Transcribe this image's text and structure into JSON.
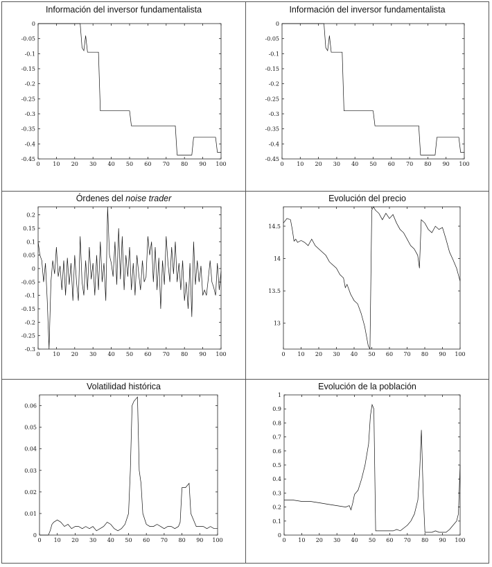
{
  "chart_data": [
    {
      "type": "line",
      "title": "Información del inversor fundamentalista",
      "xlim": [
        0,
        100
      ],
      "ylim": [
        -0.45,
        0
      ],
      "xticks": [
        0,
        10,
        20,
        30,
        40,
        50,
        60,
        70,
        80,
        90,
        100
      ],
      "yticks": [
        0,
        -0.05,
        -0.1,
        -0.15,
        -0.2,
        -0.25,
        -0.3,
        -0.35,
        -0.4,
        -0.45
      ],
      "ytick_labels": [
        "0",
        "-0.05",
        "-0.1",
        "-0.15",
        "-0.2",
        "-0.25",
        "-0.3",
        "-0.35",
        "-0.4",
        "-0.45"
      ],
      "x": [
        0,
        23,
        24,
        25,
        26,
        27,
        33,
        34,
        50,
        51,
        75,
        76,
        84,
        85,
        97,
        98,
        100
      ],
      "y": [
        0,
        0,
        -0.08,
        -0.09,
        -0.04,
        -0.095,
        -0.095,
        -0.29,
        -0.29,
        -0.34,
        -0.34,
        -0.437,
        -0.437,
        -0.378,
        -0.378,
        -0.428,
        -0.428
      ]
    },
    {
      "type": "line",
      "title": "Información del inversor fundamentalista",
      "xlim": [
        0,
        100
      ],
      "ylim": [
        -0.45,
        0
      ],
      "xticks": [
        0,
        10,
        20,
        30,
        40,
        50,
        60,
        70,
        80,
        90,
        100
      ],
      "yticks": [
        0,
        -0.05,
        -0.1,
        -0.15,
        -0.2,
        -0.25,
        -0.3,
        -0.35,
        -0.4,
        -0.45
      ],
      "ytick_labels": [
        "0",
        "-0.05",
        "-0.1",
        "-0.15",
        "-0.2",
        "-0.25",
        "-0.3",
        "-0.35",
        "-0.4",
        "-0.45"
      ],
      "x": [
        0,
        23,
        24,
        25,
        26,
        27,
        33,
        34,
        50,
        51,
        75,
        76,
        84,
        85,
        97,
        98,
        100
      ],
      "y": [
        0,
        0,
        -0.08,
        -0.09,
        -0.04,
        -0.095,
        -0.095,
        -0.29,
        -0.29,
        -0.34,
        -0.34,
        -0.437,
        -0.437,
        -0.378,
        -0.378,
        -0.428,
        -0.428
      ]
    },
    {
      "type": "line",
      "title_main": "Órdenes del ",
      "title_italic": "noise trader",
      "xlim": [
        0,
        100
      ],
      "ylim": [
        -0.3,
        0.23
      ],
      "xticks": [
        0,
        10,
        20,
        30,
        40,
        50,
        60,
        70,
        80,
        90,
        100
      ],
      "yticks": [
        0.2,
        0.15,
        0.1,
        0.05,
        0,
        -0.05,
        -0.1,
        -0.15,
        -0.2,
        -0.25,
        -0.3
      ],
      "ytick_labels": [
        "0.2",
        "0.15",
        "0.1",
        "0.05",
        "0",
        "-0.05",
        "-0.1",
        "-0.15",
        "-0.2",
        "-0.25",
        "-0.3"
      ],
      "x": [
        0,
        1,
        2,
        3,
        4,
        5,
        6,
        7,
        8,
        9,
        10,
        11,
        12,
        13,
        14,
        15,
        16,
        17,
        18,
        19,
        20,
        21,
        22,
        23,
        24,
        25,
        26,
        27,
        28,
        29,
        30,
        31,
        32,
        33,
        34,
        35,
        36,
        37,
        38,
        39,
        40,
        41,
        42,
        43,
        44,
        45,
        46,
        47,
        48,
        49,
        50,
        51,
        52,
        53,
        54,
        55,
        56,
        57,
        58,
        59,
        60,
        61,
        62,
        63,
        64,
        65,
        66,
        67,
        68,
        69,
        70,
        71,
        72,
        73,
        74,
        75,
        76,
        77,
        78,
        79,
        80,
        81,
        82,
        83,
        84,
        85,
        86,
        87,
        88,
        89,
        90,
        91,
        92,
        93,
        94,
        95,
        96,
        97,
        98,
        99,
        100
      ],
      "y": [
        0.1,
        0.05,
        0.03,
        -0.05,
        0.02,
        -0.12,
        -0.3,
        -0.05,
        0.03,
        -0.02,
        0.08,
        -0.03,
        0.01,
        -0.08,
        0.03,
        -0.1,
        0.04,
        -0.06,
        0.02,
        -0.12,
        0.05,
        -0.05,
        -0.12,
        0.12,
        -0.05,
        -0.1,
        0.03,
        -0.08,
        0.08,
        -0.04,
        0.02,
        -0.1,
        0.05,
        -0.08,
        0.1,
        -0.05,
        0.02,
        -0.12,
        0.23,
        0.05,
        0.02,
        -0.03,
        0.1,
        -0.06,
        0.15,
        -0.04,
        0.12,
        -0.08,
        0.05,
        -0.03,
        0.08,
        -0.08,
        0.02,
        -0.1,
        0.05,
        -0.02,
        -0.08,
        0.03,
        -0.05,
        -0.03,
        0.12,
        0.05,
        0.1,
        -0.05,
        0.08,
        -0.08,
        0.04,
        -0.15,
        0.03,
        -0.06,
        0.12,
        0.02,
        -0.05,
        0.08,
        -0.02,
        0.1,
        -0.05,
        0.02,
        -0.08,
        0.03,
        -0.12,
        -0.05,
        -0.15,
        0.02,
        -0.18,
        0.1,
        -0.06,
        0.03,
        -0.05,
        0.01,
        -0.1,
        -0.08,
        -0.1,
        -0.04,
        0.03,
        -0.05,
        -0.07,
        -0.1,
        0.02,
        -0.08,
        -0.01
      ]
    },
    {
      "type": "line",
      "title": "Evolución del precio",
      "xlim": [
        0,
        100
      ],
      "ylim": [
        12.6,
        14.8
      ],
      "xticks": [
        0,
        10,
        20,
        30,
        40,
        50,
        60,
        70,
        80,
        90,
        100
      ],
      "yticks": [
        14.5,
        14,
        13.5,
        13
      ],
      "ytick_labels": [
        "14.5",
        "14",
        "13.5",
        "13"
      ],
      "x": [
        0,
        2,
        4,
        5,
        6,
        7,
        8,
        10,
        12,
        14,
        16,
        18,
        20,
        22,
        24,
        26,
        28,
        30,
        32,
        34,
        35,
        36,
        38,
        40,
        42,
        44,
        46,
        48,
        49,
        50,
        51,
        52,
        54,
        56,
        58,
        60,
        62,
        64,
        66,
        68,
        70,
        72,
        74,
        76,
        77,
        78,
        80,
        82,
        84,
        86,
        88,
        90,
        92,
        94,
        96,
        98,
        100
      ],
      "y": [
        14.55,
        14.62,
        14.6,
        14.45,
        14.27,
        14.3,
        14.25,
        14.28,
        14.25,
        14.2,
        14.3,
        14.2,
        14.15,
        14.1,
        14.05,
        13.95,
        13.9,
        13.85,
        13.75,
        13.7,
        13.55,
        13.6,
        13.45,
        13.35,
        13.3,
        13.15,
        12.95,
        12.65,
        12.6,
        14.75,
        14.8,
        14.75,
        14.7,
        14.6,
        14.7,
        14.62,
        14.68,
        14.55,
        14.45,
        14.4,
        14.3,
        14.2,
        14.15,
        14.05,
        13.85,
        14.6,
        14.55,
        14.45,
        14.4,
        14.5,
        14.45,
        14.48,
        14.3,
        14.1,
        13.98,
        13.85,
        13.65
      ]
    },
    {
      "type": "line",
      "title": "Volatilidad histórica",
      "xlim": [
        0,
        100
      ],
      "ylim": [
        0,
        0.065
      ],
      "xticks": [
        0,
        10,
        20,
        30,
        40,
        50,
        60,
        70,
        80,
        90,
        100
      ],
      "yticks": [
        0,
        0.01,
        0.02,
        0.03,
        0.04,
        0.05,
        0.06
      ],
      "ytick_labels": [
        "0",
        "0.01",
        "0.02",
        "0.03",
        "0.04",
        "0.05",
        "0.06"
      ],
      "x": [
        0,
        5,
        6,
        7,
        8,
        10,
        12,
        14,
        16,
        18,
        20,
        22,
        24,
        26,
        28,
        30,
        32,
        34,
        36,
        38,
        40,
        42,
        44,
        46,
        48,
        50,
        51,
        52,
        53,
        54,
        55,
        56,
        57,
        58,
        60,
        62,
        64,
        66,
        68,
        70,
        72,
        74,
        76,
        78,
        79,
        80,
        82,
        84,
        85,
        86,
        88,
        90,
        92,
        94,
        96,
        98,
        100
      ],
      "y": [
        0,
        0,
        0.002,
        0.005,
        0.006,
        0.007,
        0.006,
        0.004,
        0.005,
        0.003,
        0.004,
        0.004,
        0.003,
        0.004,
        0.003,
        0.004,
        0.002,
        0.003,
        0.004,
        0.006,
        0.005,
        0.003,
        0.002,
        0.003,
        0.005,
        0.01,
        0.03,
        0.06,
        0.062,
        0.063,
        0.064,
        0.03,
        0.024,
        0.01,
        0.005,
        0.004,
        0.004,
        0.005,
        0.004,
        0.003,
        0.004,
        0.004,
        0.003,
        0.004,
        0.006,
        0.022,
        0.022,
        0.024,
        0.01,
        0.008,
        0.004,
        0.004,
        0.004,
        0.003,
        0.004,
        0.003,
        0.003
      ]
    },
    {
      "type": "line",
      "title": "Evolución de la población",
      "xlim": [
        0,
        100
      ],
      "ylim": [
        0,
        1
      ],
      "xticks": [
        0,
        10,
        20,
        30,
        40,
        50,
        60,
        70,
        80,
        90,
        100
      ],
      "yticks": [
        0,
        0.1,
        0.2,
        0.3,
        0.4,
        0.5,
        0.6,
        0.7,
        0.8,
        0.9,
        1
      ],
      "ytick_labels": [
        "0",
        "0.1",
        "0.2",
        "0.3",
        "0.4",
        "0.5",
        "0.6",
        "0.7",
        "0.8",
        "0.9",
        "1"
      ],
      "x": [
        0,
        5,
        10,
        15,
        20,
        25,
        30,
        35,
        37,
        38,
        39,
        40,
        42,
        44,
        46,
        48,
        49,
        50,
        51,
        52,
        55,
        60,
        62,
        64,
        66,
        68,
        70,
        72,
        74,
        76,
        77,
        78,
        79,
        80,
        82,
        84,
        86,
        88,
        90,
        92,
        94,
        96,
        98,
        99,
        100
      ],
      "y": [
        0.25,
        0.25,
        0.24,
        0.24,
        0.23,
        0.22,
        0.21,
        0.2,
        0.21,
        0.18,
        0.23,
        0.29,
        0.32,
        0.4,
        0.5,
        0.65,
        0.85,
        0.93,
        0.9,
        0.03,
        0.03,
        0.03,
        0.03,
        0.04,
        0.03,
        0.05,
        0.07,
        0.1,
        0.15,
        0.25,
        0.45,
        0.75,
        0.3,
        0.02,
        0.02,
        0.02,
        0.03,
        0.02,
        0.02,
        0.02,
        0.04,
        0.07,
        0.1,
        0.15,
        0.5
      ]
    }
  ]
}
